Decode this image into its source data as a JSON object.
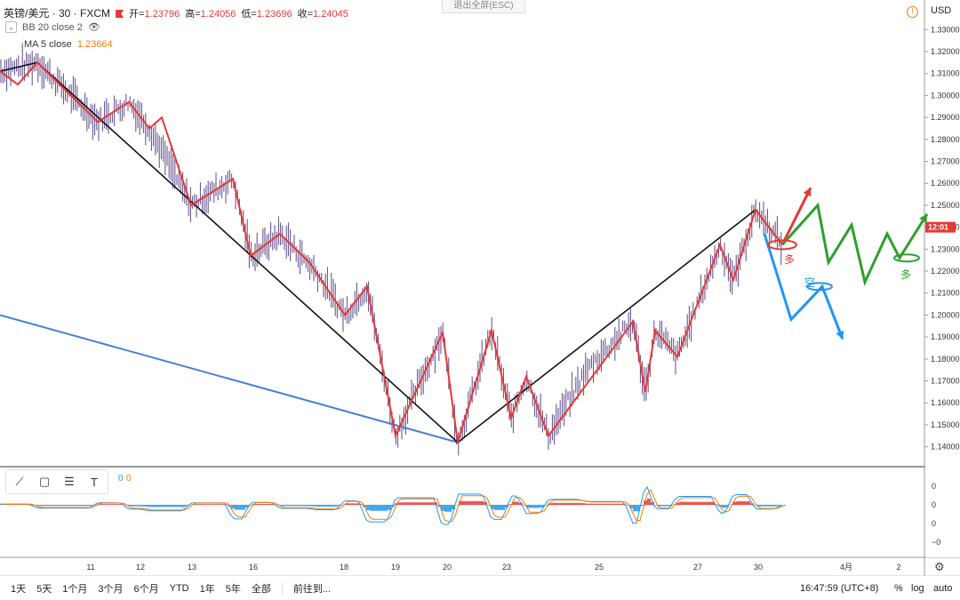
{
  "header": {
    "symbol": "英镑/美元 · 30 · FXCM",
    "open_label": "开=",
    "open": "1.23796",
    "high_label": "高=",
    "high": "1.24056",
    "low_label": "低=",
    "low": "1.23696",
    "close_label": "收=",
    "close": "1.24045"
  },
  "indicators": {
    "bb": "BB 20 close 2",
    "ma": "MA 5 close",
    "ma_value": "1.23664"
  },
  "exit_fullscreen": "退出全屏(ESC)",
  "currency": "USD",
  "price_tag": "12:01",
  "osc_values": [
    "0",
    "0"
  ],
  "bottom": {
    "ranges": [
      "1天",
      "5天",
      "1个月",
      "3个月",
      "6个月",
      "YTD",
      "1年",
      "5年",
      "全部"
    ],
    "goto": "前往到...",
    "time": "16:47:59 (UTC+8)",
    "pct": "%",
    "log": "log",
    "auto": "auto"
  },
  "annotations": {
    "long1": "多",
    "short": "空",
    "long2": "多"
  },
  "colors": {
    "zigzag": "#e53935",
    "trend": "#111111",
    "channel": "#4a7fd6",
    "bull": "#2e9e2e",
    "bear": "#2196f3",
    "candle": "#5b4a8a"
  },
  "chart_data": {
    "type": "line",
    "title": "英镑/美元 · 30 · FXCM",
    "x_ticks": [
      "11",
      "12",
      "13",
      "16",
      "18",
      "19",
      "20",
      "23",
      "25",
      "27",
      "30",
      "4月",
      "2"
    ],
    "y_ticks": [
      "1.33000",
      "1.32000",
      "1.31000",
      "1.30000",
      "1.29000",
      "1.28000",
      "1.27000",
      "1.26000",
      "1.25000",
      "1.24000",
      "1.23000",
      "1.22000",
      "1.21000",
      "1.20000",
      "1.19000",
      "1.18000",
      "1.17000",
      "1.16000",
      "1.15000",
      "1.14000"
    ],
    "ylim": [
      1.135,
      1.337
    ],
    "osc_ticks": [
      "0",
      "0",
      "0",
      "−0",
      "−0"
    ],
    "price_path": [
      [
        0,
        1.311
      ],
      [
        42,
        1.315
      ],
      [
        110,
        1.288
      ],
      [
        145,
        1.297
      ],
      [
        168,
        1.285
      ],
      [
        215,
        1.25
      ],
      [
        262,
        1.262
      ],
      [
        282,
        1.227
      ],
      [
        315,
        1.237
      ],
      [
        355,
        1.22
      ],
      [
        388,
        1.2
      ],
      [
        413,
        1.213
      ],
      [
        445,
        1.145
      ],
      [
        498,
        1.192
      ],
      [
        515,
        1.142
      ],
      [
        553,
        1.193
      ],
      [
        575,
        1.153
      ],
      [
        592,
        1.172
      ],
      [
        617,
        1.145
      ],
      [
        660,
        1.175
      ],
      [
        712,
        1.197
      ],
      [
        726,
        1.165
      ],
      [
        737,
        1.193
      ],
      [
        762,
        1.181
      ],
      [
        810,
        1.232
      ],
      [
        825,
        1.216
      ],
      [
        850,
        1.248
      ],
      [
        880,
        1.232
      ]
    ],
    "zigzag": [
      [
        0,
        1.311
      ],
      [
        20,
        1.305
      ],
      [
        42,
        1.315
      ],
      [
        110,
        1.288
      ],
      [
        145,
        1.297
      ],
      [
        168,
        1.285
      ],
      [
        182,
        1.29
      ],
      [
        215,
        1.25
      ],
      [
        262,
        1.262
      ],
      [
        282,
        1.227
      ],
      [
        315,
        1.237
      ],
      [
        348,
        1.224
      ],
      [
        388,
        1.2
      ],
      [
        413,
        1.213
      ],
      [
        445,
        1.145
      ],
      [
        498,
        1.192
      ],
      [
        515,
        1.142
      ],
      [
        553,
        1.193
      ],
      [
        575,
        1.153
      ],
      [
        592,
        1.172
      ],
      [
        617,
        1.145
      ],
      [
        712,
        1.197
      ],
      [
        726,
        1.165
      ],
      [
        737,
        1.193
      ],
      [
        762,
        1.181
      ],
      [
        810,
        1.232
      ],
      [
        825,
        1.216
      ],
      [
        850,
        1.248
      ],
      [
        880,
        1.232
      ]
    ],
    "trend": [
      [
        0,
        1.311
      ],
      [
        42,
        1.315
      ],
      [
        515,
        1.142
      ],
      [
        850,
        1.248
      ]
    ],
    "channel": [
      [
        0,
        1.2
      ],
      [
        515,
        1.142
      ]
    ],
    "proj_bull": [
      [
        880,
        1.232
      ],
      [
        912,
        1.258
      ]
    ],
    "proj_long": [
      [
        880,
        1.232
      ],
      [
        920,
        1.25
      ],
      [
        932,
        1.224
      ],
      [
        958,
        1.241
      ],
      [
        973,
        1.215
      ],
      [
        998,
        1.237
      ],
      [
        1012,
        1.226
      ],
      [
        1043,
        1.246
      ]
    ],
    "proj_short": [
      [
        860,
        1.237
      ],
      [
        890,
        1.198
      ],
      [
        925,
        1.213
      ],
      [
        948,
        1.189
      ]
    ]
  }
}
